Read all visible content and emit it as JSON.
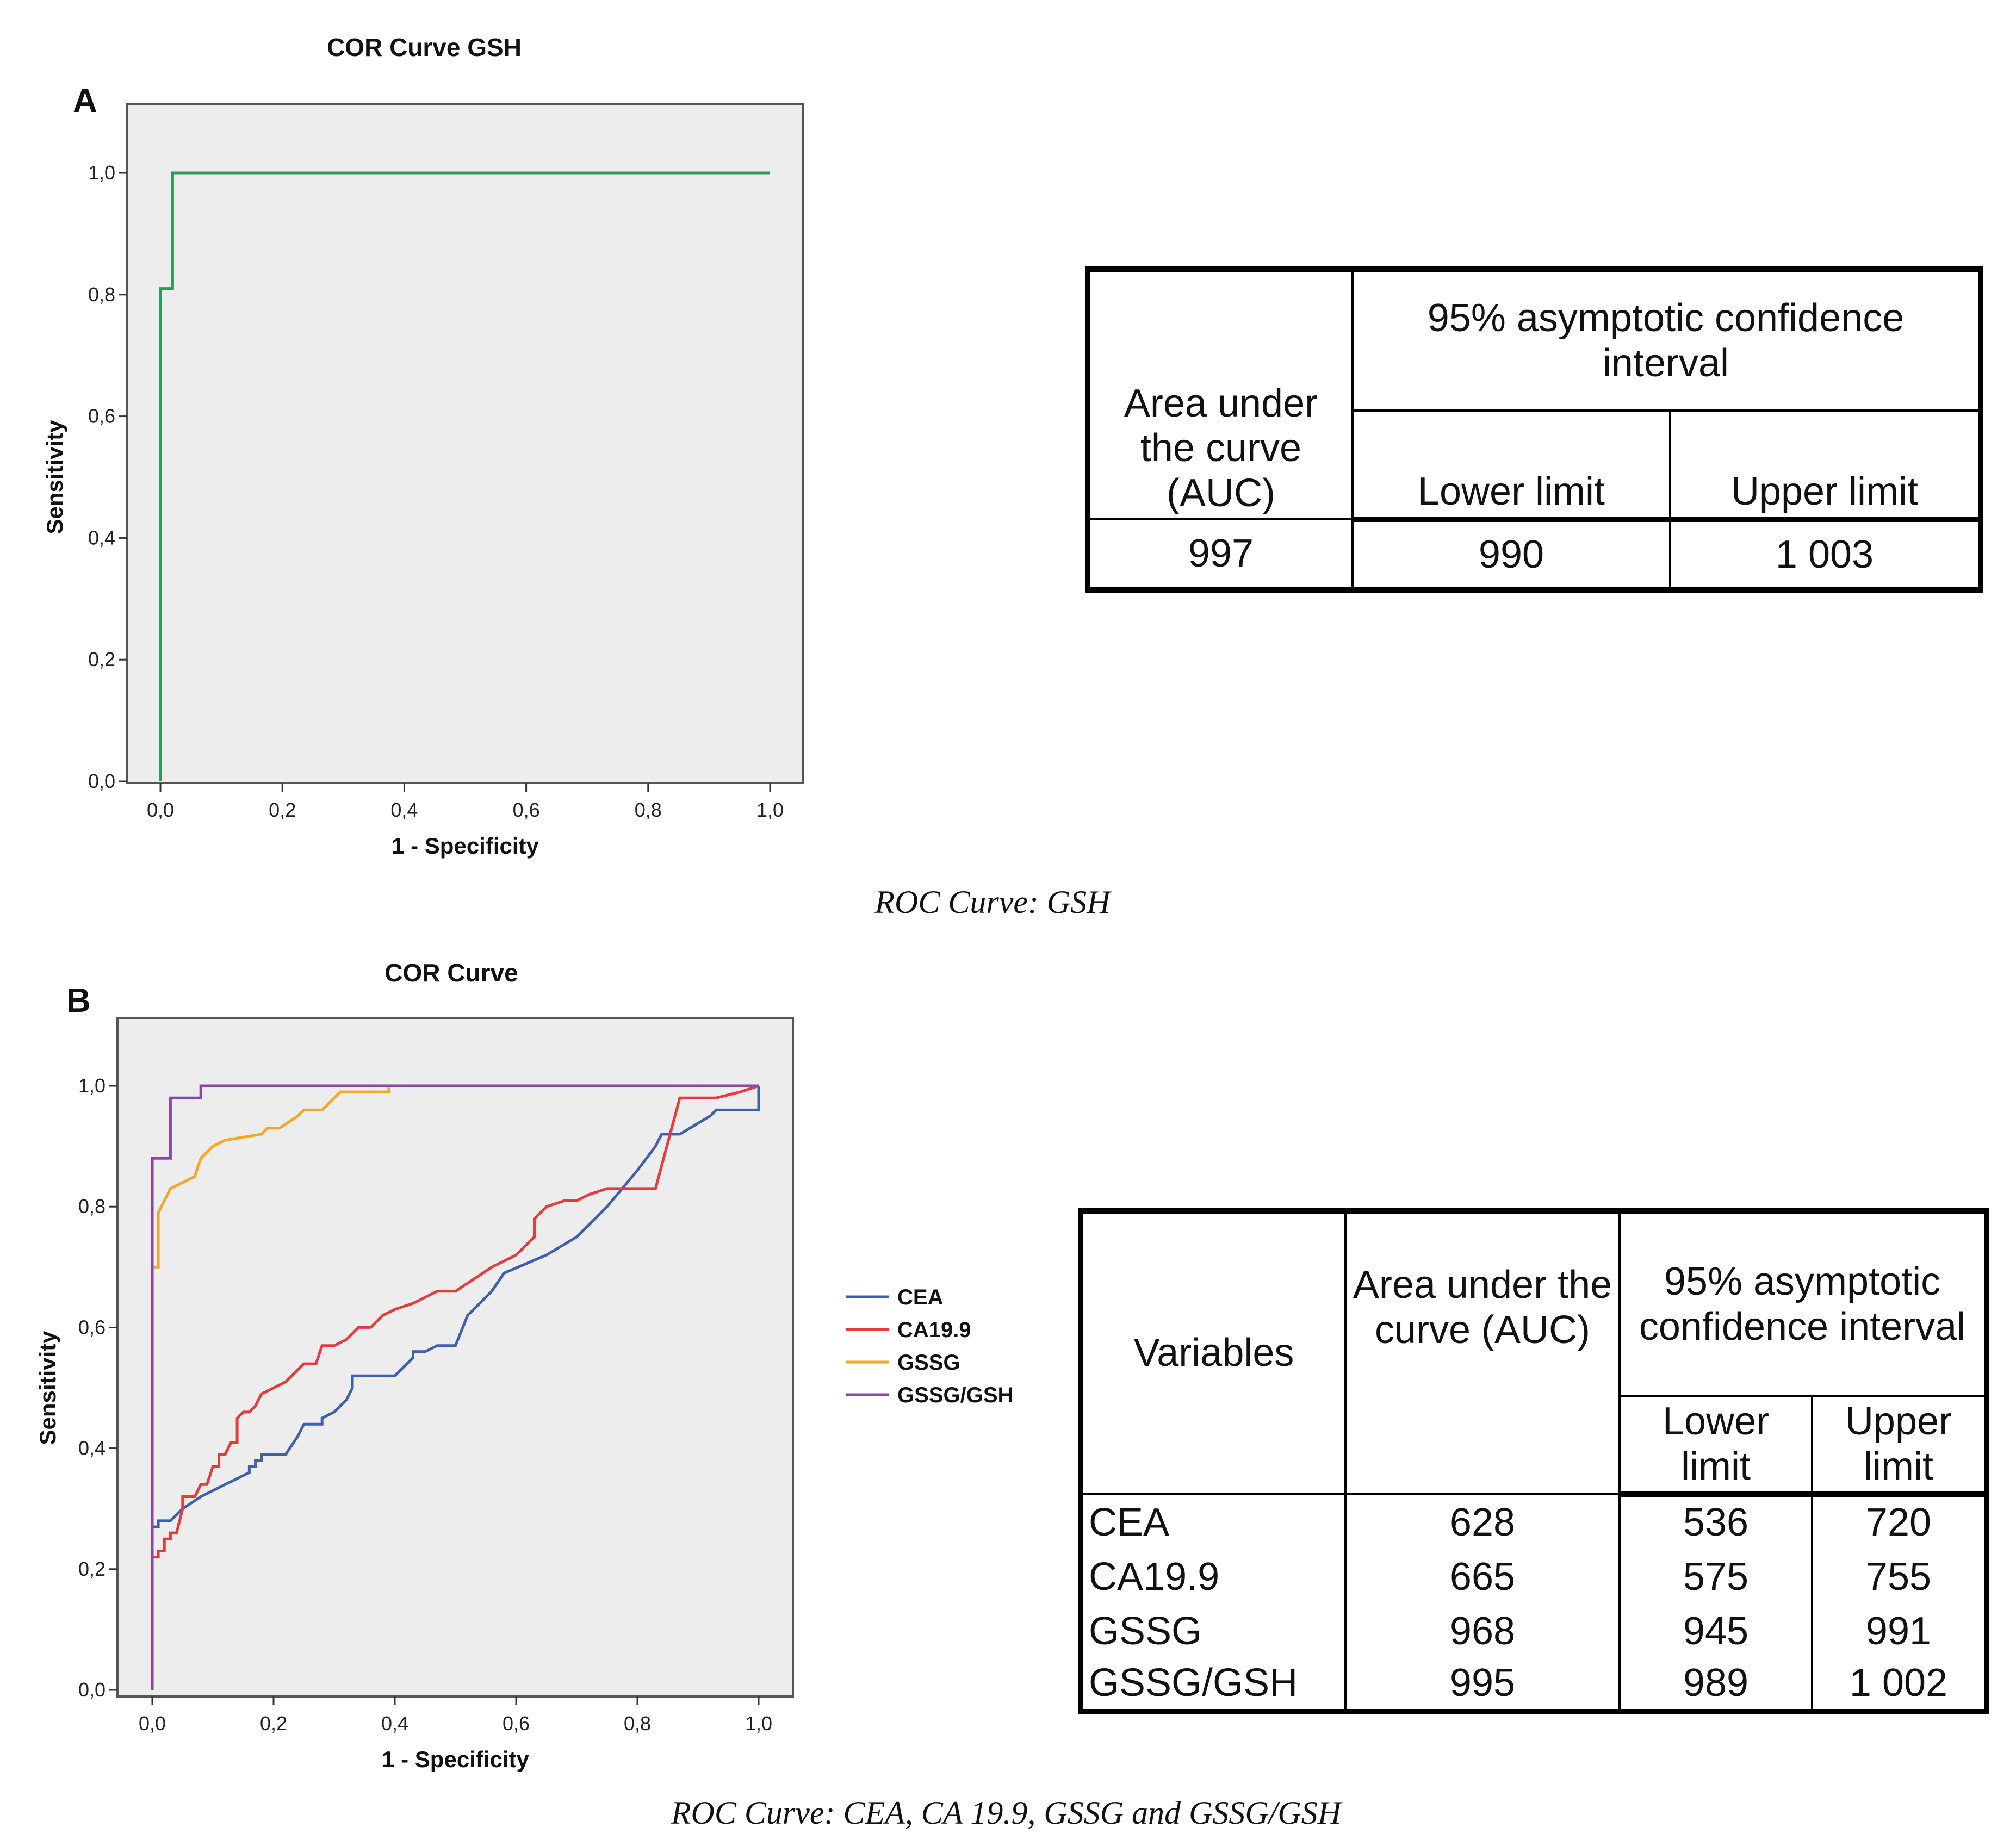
{
  "panel_a": {
    "letter": "A",
    "title": "COR Curve GSH",
    "caption": "ROC Curve: GSH",
    "table": {
      "auc_header": "Area under the curve (AUC)",
      "ci_header": "95% asymptotic confidence interval",
      "lower_header": "Lower limit",
      "upper_header": "Upper limit",
      "auc": "997",
      "lower": "990",
      "upper": "1 003"
    }
  },
  "panel_b": {
    "letter": "B",
    "title": "COR Curve",
    "caption": "ROC Curve: CEA, CA 19.9, GSSG and GSSG/GSH",
    "table": {
      "var_header": "Variables",
      "auc_header": "Area under the curve (AUC)",
      "ci_header": "95% asymptotic confidence interval",
      "lower_header": "Lower limit",
      "upper_header": "Upper limit",
      "rows": [
        {
          "variable": "CEA",
          "auc": "628",
          "lower": "536",
          "upper": "720"
        },
        {
          "variable": "CA19.9",
          "auc": "665",
          "lower": "575",
          "upper": "755"
        },
        {
          "variable": "GSSG",
          "auc": "968",
          "lower": "945",
          "upper": "991"
        },
        {
          "variable": "GSSG/GSH",
          "auc": "995",
          "lower": "989",
          "upper": "1 002"
        }
      ]
    }
  },
  "chart_data": [
    {
      "type": "line",
      "title": "COR Curve GSH",
      "xlabel": "1 - Specificity",
      "ylabel": "Sensitivity",
      "xlim": [
        0,
        1
      ],
      "ylim": [
        0,
        1
      ],
      "xticks": [
        "0,0",
        "0,2",
        "0,4",
        "0,6",
        "0,8",
        "1,0"
      ],
      "yticks": [
        "0,0",
        "0,2",
        "0,4",
        "0,6",
        "0,8",
        "1,0"
      ],
      "background": "#ededed",
      "series": [
        {
          "color": "#2f9a5a",
          "points": [
            [
              0,
              0
            ],
            [
              0,
              0.81
            ],
            [
              0.02,
              0.81
            ],
            [
              0.02,
              1.0
            ],
            [
              1.0,
              1.0
            ]
          ]
        }
      ]
    },
    {
      "type": "line",
      "title": "COR Curve",
      "xlabel": "1 - Specificity",
      "ylabel": "Sensitivity",
      "xlim": [
        0,
        1
      ],
      "ylim": [
        0,
        1
      ],
      "xticks": [
        "0,0",
        "0,2",
        "0,4",
        "0,6",
        "0,8",
        "1,0"
      ],
      "yticks": [
        "0,0",
        "0,2",
        "0,4",
        "0,6",
        "0,8",
        "1,0"
      ],
      "background": "#ededed",
      "legend": "right",
      "series": [
        {
          "name": "CEA",
          "color": "#3f5fb0",
          "points": [
            [
              0,
              0
            ],
            [
              0,
              0.27
            ],
            [
              0.01,
              0.27
            ],
            [
              0.01,
              0.28
            ],
            [
              0.03,
              0.28
            ],
            [
              0.05,
              0.3
            ],
            [
              0.08,
              0.32
            ],
            [
              0.1,
              0.33
            ],
            [
              0.12,
              0.34
            ],
            [
              0.14,
              0.35
            ],
            [
              0.16,
              0.36
            ],
            [
              0.16,
              0.37
            ],
            [
              0.17,
              0.37
            ],
            [
              0.17,
              0.38
            ],
            [
              0.18,
              0.38
            ],
            [
              0.18,
              0.39
            ],
            [
              0.22,
              0.39
            ],
            [
              0.22,
              0.39
            ],
            [
              0.24,
              0.42
            ],
            [
              0.25,
              0.44
            ],
            [
              0.28,
              0.44
            ],
            [
              0.28,
              0.45
            ],
            [
              0.3,
              0.46
            ],
            [
              0.32,
              0.48
            ],
            [
              0.33,
              0.5
            ],
            [
              0.33,
              0.52
            ],
            [
              0.4,
              0.52
            ],
            [
              0.43,
              0.55
            ],
            [
              0.43,
              0.56
            ],
            [
              0.45,
              0.56
            ],
            [
              0.47,
              0.57
            ],
            [
              0.5,
              0.57
            ],
            [
              0.52,
              0.62
            ],
            [
              0.56,
              0.66
            ],
            [
              0.58,
              0.69
            ],
            [
              0.65,
              0.72
            ],
            [
              0.7,
              0.75
            ],
            [
              0.75,
              0.8
            ],
            [
              0.8,
              0.86
            ],
            [
              0.83,
              0.9
            ],
            [
              0.84,
              0.92
            ],
            [
              0.86,
              0.92
            ],
            [
              0.87,
              0.92
            ],
            [
              0.92,
              0.95
            ],
            [
              0.93,
              0.96
            ],
            [
              1.0,
              0.96
            ],
            [
              1.0,
              1.0
            ]
          ]
        },
        {
          "name": "CA19.9",
          "color": "#e83a3a",
          "points": [
            [
              0,
              0
            ],
            [
              0,
              0.22
            ],
            [
              0.01,
              0.22
            ],
            [
              0.01,
              0.23
            ],
            [
              0.02,
              0.23
            ],
            [
              0.02,
              0.25
            ],
            [
              0.03,
              0.25
            ],
            [
              0.03,
              0.26
            ],
            [
              0.04,
              0.26
            ],
            [
              0.05,
              0.3
            ],
            [
              0.05,
              0.32
            ],
            [
              0.06,
              0.32
            ],
            [
              0.07,
              0.32
            ],
            [
              0.08,
              0.34
            ],
            [
              0.09,
              0.34
            ],
            [
              0.1,
              0.37
            ],
            [
              0.11,
              0.37
            ],
            [
              0.11,
              0.39
            ],
            [
              0.12,
              0.39
            ],
            [
              0.13,
              0.41
            ],
            [
              0.14,
              0.41
            ],
            [
              0.14,
              0.45
            ],
            [
              0.15,
              0.46
            ],
            [
              0.16,
              0.46
            ],
            [
              0.17,
              0.47
            ],
            [
              0.18,
              0.49
            ],
            [
              0.2,
              0.5
            ],
            [
              0.22,
              0.51
            ],
            [
              0.24,
              0.53
            ],
            [
              0.25,
              0.54
            ],
            [
              0.27,
              0.54
            ],
            [
              0.28,
              0.57
            ],
            [
              0.3,
              0.57
            ],
            [
              0.32,
              0.58
            ],
            [
              0.34,
              0.6
            ],
            [
              0.36,
              0.6
            ],
            [
              0.38,
              0.62
            ],
            [
              0.4,
              0.63
            ],
            [
              0.43,
              0.64
            ],
            [
              0.45,
              0.65
            ],
            [
              0.47,
              0.66
            ],
            [
              0.5,
              0.66
            ],
            [
              0.53,
              0.68
            ],
            [
              0.56,
              0.7
            ],
            [
              0.6,
              0.72
            ],
            [
              0.62,
              0.74
            ],
            [
              0.63,
              0.75
            ],
            [
              0.63,
              0.78
            ],
            [
              0.65,
              0.8
            ],
            [
              0.68,
              0.81
            ],
            [
              0.7,
              0.81
            ],
            [
              0.72,
              0.82
            ],
            [
              0.75,
              0.83
            ],
            [
              0.83,
              0.83
            ],
            [
              0.87,
              0.98
            ],
            [
              0.93,
              0.98
            ],
            [
              0.97,
              0.99
            ],
            [
              1.0,
              1.0
            ]
          ]
        },
        {
          "name": "GSSG",
          "color": "#f5a623",
          "points": [
            [
              0,
              0
            ],
            [
              0,
              0.7
            ],
            [
              0.01,
              0.7
            ],
            [
              0.01,
              0.79
            ],
            [
              0.02,
              0.81
            ],
            [
              0.03,
              0.83
            ],
            [
              0.05,
              0.84
            ],
            [
              0.07,
              0.85
            ],
            [
              0.08,
              0.88
            ],
            [
              0.09,
              0.89
            ],
            [
              0.1,
              0.9
            ],
            [
              0.12,
              0.91
            ],
            [
              0.18,
              0.92
            ],
            [
              0.19,
              0.93
            ],
            [
              0.21,
              0.93
            ],
            [
              0.24,
              0.95
            ],
            [
              0.25,
              0.96
            ],
            [
              0.28,
              0.96
            ],
            [
              0.3,
              0.98
            ],
            [
              0.31,
              0.99
            ],
            [
              0.39,
              0.99
            ],
            [
              0.39,
              1.0
            ],
            [
              1.0,
              1.0
            ]
          ]
        },
        {
          "name": "GSSG/GSH",
          "color": "#8e44ad",
          "points": [
            [
              0,
              0
            ],
            [
              0,
              0.88
            ],
            [
              0.03,
              0.88
            ],
            [
              0.03,
              0.98
            ],
            [
              0.08,
              0.98
            ],
            [
              0.08,
              1.0
            ],
            [
              1.0,
              1.0
            ]
          ]
        }
      ]
    }
  ]
}
